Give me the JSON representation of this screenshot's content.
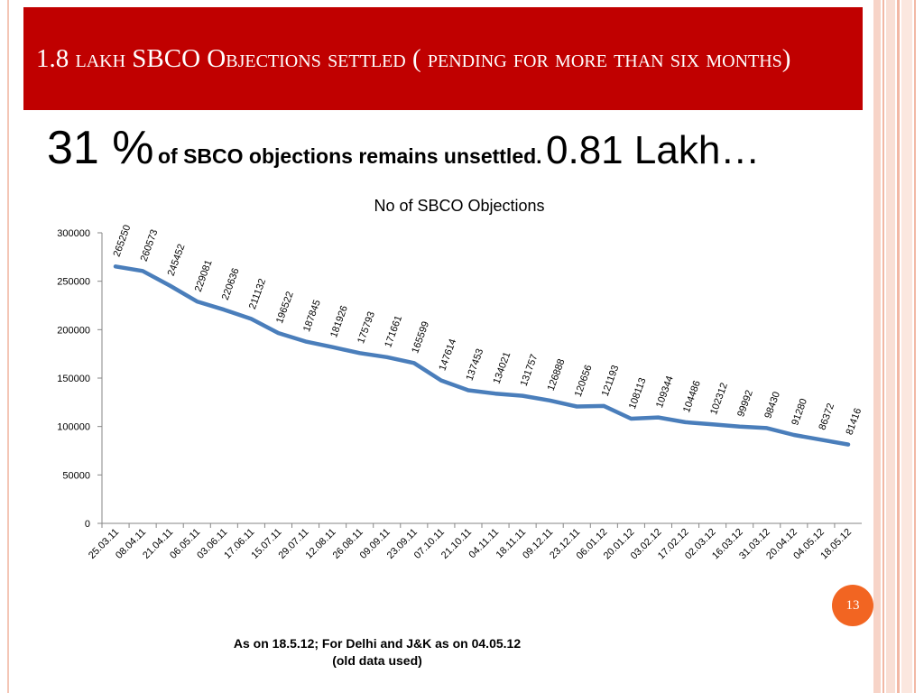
{
  "slide": {
    "title": "1.8 lakh  SBCO Objections settled ( pending for more than six months)",
    "headline_percent": "31 %",
    "headline_text": "of SBCO objections remains unsettled.",
    "headline_lakh": "0.81 Lakh…",
    "page_number": "13",
    "footnote_line1": "As on 18.5.12; For Delhi  and J&K as on 04.05.12",
    "footnote_line2": "(old data used)"
  },
  "chart_data": {
    "type": "line",
    "title": "No of SBCO Objections",
    "xlabel": "",
    "ylabel": "",
    "ylim": [
      0,
      300000
    ],
    "yticks": [
      0,
      50000,
      100000,
      150000,
      200000,
      250000,
      300000
    ],
    "grid": false,
    "line_color": "#4a7ebb",
    "categories": [
      "25.03.11",
      "08.04.11",
      "21.04.11",
      "06.05.11",
      "03.06.11",
      "17.06.11",
      "15.07.11",
      "29.07.11",
      "12.08.11",
      "26.08.11",
      "09.09.11",
      "23.09.11",
      "07.10.11",
      "21.10.11",
      "04.11.11",
      "18.11.11",
      "09.12.11",
      "23.12.11",
      "06.01.12",
      "20.01.12",
      "03.02.12",
      "17.02.12",
      "02.03.12",
      "16.03.12",
      "31.03.12",
      "20.04.12",
      "04.05.12",
      "18.05.12"
    ],
    "values": [
      265250,
      260573,
      245452,
      229081,
      220636,
      211132,
      196522,
      187845,
      181926,
      175793,
      171661,
      165599,
      147614,
      137453,
      134021,
      131757,
      126888,
      120656,
      121193,
      108113,
      109344,
      104486,
      102312,
      99992,
      98430,
      91280,
      86372,
      81416
    ]
  }
}
